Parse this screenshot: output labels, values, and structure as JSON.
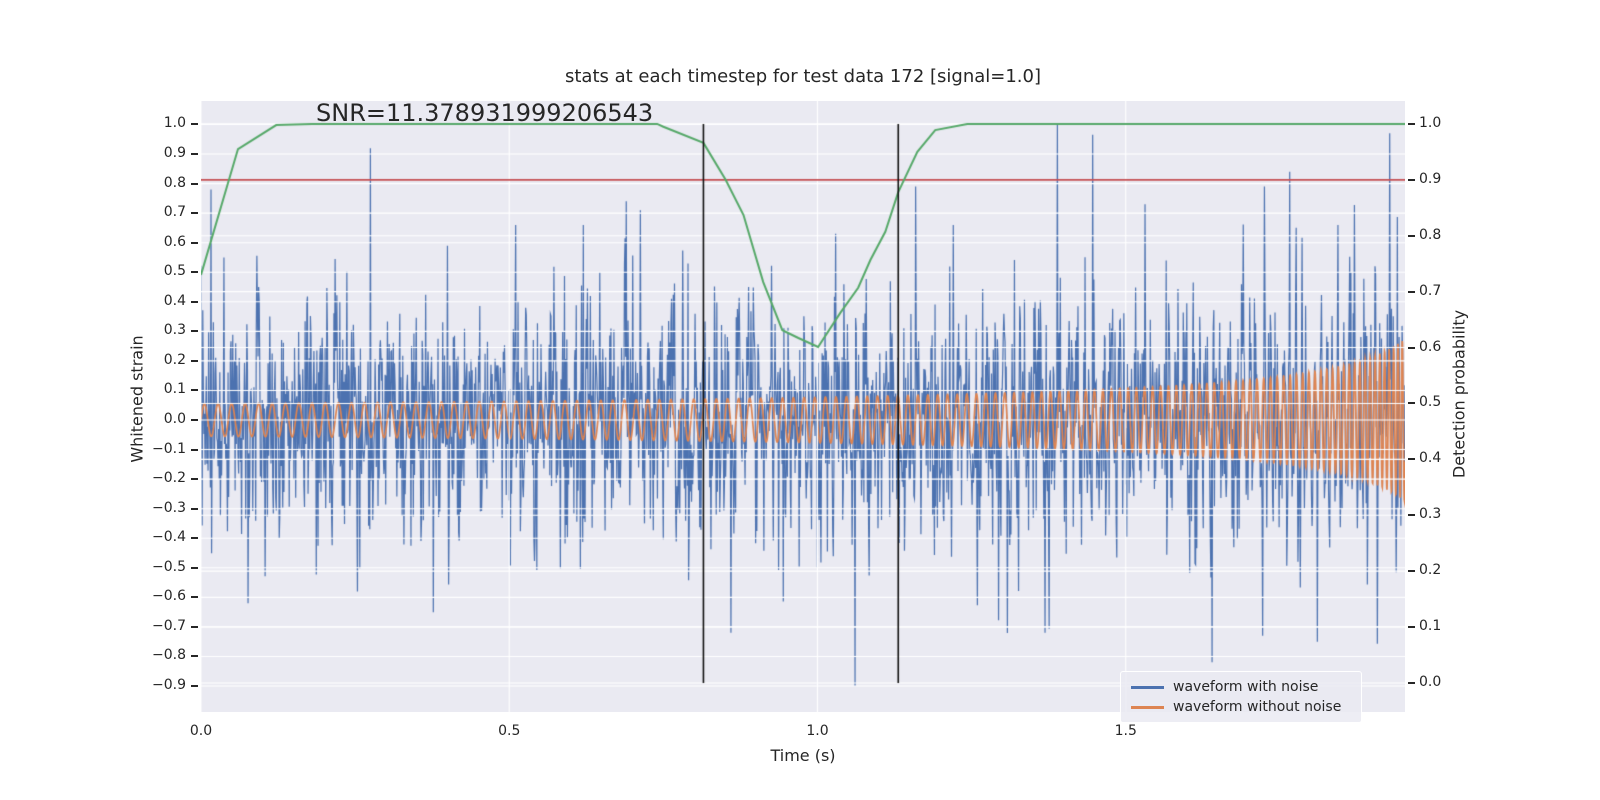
{
  "title": "stats at each timestep for test data 172 [signal=1.0]",
  "annotation": {
    "snr_label": "SNR=11.378931999206543"
  },
  "colors": {
    "figure_background": "#ffffff",
    "plot_background": "#eaeaf2",
    "grid": "#ffffff",
    "text": "#262626",
    "waveform_with_noise": "#4c72b0",
    "waveform_without_noise": "#dd8452",
    "detection_probability": "#55a868",
    "threshold_line": "#c44e52",
    "event_marker": "#111111"
  },
  "legend": {
    "items": [
      {
        "label": "waveform with noise",
        "color": "#4c72b0"
      },
      {
        "label": "waveform without noise",
        "color": "#dd8452"
      }
    ],
    "position": "lower right"
  },
  "chart_data": {
    "type": "line",
    "title": "stats at each timestep for test data 172 [signal=1.0]",
    "xlabel": "Time (s)",
    "ylabel_left": "Whitened strain",
    "ylabel_right": "Detection probability",
    "xlim": [
      0,
      1.953
    ],
    "ylim_left": [
      -0.988,
      1.0795
    ],
    "ylim_right": [
      -0.052,
      1.041
    ],
    "grid": true,
    "x_ticks": {
      "values": [
        0.0,
        0.5,
        1.0,
        1.5
      ],
      "labels": [
        "0.0",
        "0.5",
        "1.0",
        "1.5"
      ]
    },
    "y_ticks_left": {
      "values": [
        1.0,
        0.9,
        0.8,
        0.7,
        0.6,
        0.5,
        0.4,
        0.3,
        0.2,
        0.1,
        0.0,
        -0.1,
        -0.2,
        -0.3,
        -0.4,
        -0.5,
        -0.6,
        -0.7,
        -0.8,
        -0.9
      ],
      "labels": [
        "1.0",
        "0.9",
        "0.8",
        "0.7",
        "0.6",
        "0.5",
        "0.4",
        "0.3",
        "0.2",
        "0.1",
        "0.0",
        "−0.1",
        "−0.2",
        "−0.3",
        "−0.4",
        "−0.5",
        "−0.6",
        "−0.7",
        "−0.8",
        "−0.9"
      ]
    },
    "y_ticks_right": {
      "values": [
        1.0,
        0.9,
        0.8,
        0.7,
        0.6,
        0.5,
        0.4,
        0.3,
        0.2,
        0.1,
        0.0
      ],
      "labels": [
        "1.0",
        "0.9",
        "0.8",
        "0.7",
        "0.6",
        "0.5",
        "0.4",
        "0.3",
        "0.2",
        "0.1",
        "0.0"
      ]
    },
    "series": [
      {
        "name": "waveform with noise",
        "kind": "noisy_signal",
        "axis": "left",
        "color": "#4c72b0",
        "noise_std": 0.21,
        "n_samples": 2048,
        "seed": 172,
        "notable_spikes": [
          [
            0.016,
            0.78
          ],
          [
            0.037,
            0.55
          ],
          [
            0.076,
            -0.62
          ],
          [
            0.275,
            0.92
          ],
          [
            0.4,
            0.59
          ],
          [
            0.51,
            0.66
          ],
          [
            0.62,
            0.66
          ],
          [
            0.69,
            0.74
          ],
          [
            0.713,
            0.71
          ],
          [
            0.79,
            0.53
          ],
          [
            0.86,
            -0.72
          ],
          [
            1.029,
            0.63
          ],
          [
            1.061,
            -0.9
          ],
          [
            1.159,
            0.79
          ],
          [
            1.22,
            0.66
          ],
          [
            1.369,
            -0.72
          ],
          [
            1.389,
            1.0
          ],
          [
            1.446,
            0.965
          ],
          [
            1.531,
            0.73
          ],
          [
            1.64,
            -0.82
          ],
          [
            1.722,
            -0.73
          ],
          [
            1.766,
            0.84
          ],
          [
            1.811,
            -0.75
          ],
          [
            1.844,
            0.66
          ],
          [
            1.928,
            0.97
          ]
        ]
      },
      {
        "name": "waveform without noise",
        "kind": "chirp_signal",
        "axis": "left",
        "color": "#dd8452",
        "f0_hz": 45,
        "t_coalesce": 2.034,
        "freq_exponent": -0.375,
        "amp0": 0.055,
        "amp_exponent": -0.5
      },
      {
        "name": "detection probability",
        "kind": "line",
        "axis": "right",
        "color": "#55a868",
        "points": [
          [
            0.0,
            0.73
          ],
          [
            0.06,
            0.955
          ],
          [
            0.122,
            0.998
          ],
          [
            0.18,
            1.0
          ],
          [
            0.74,
            1.0
          ],
          [
            0.75,
            0.995
          ],
          [
            0.815,
            0.966
          ],
          [
            0.851,
            0.9
          ],
          [
            0.88,
            0.837
          ],
          [
            0.912,
            0.717
          ],
          [
            0.943,
            0.631
          ],
          [
            0.969,
            0.617
          ],
          [
            1.001,
            0.601
          ],
          [
            1.037,
            0.662
          ],
          [
            1.066,
            0.707
          ],
          [
            1.086,
            0.757
          ],
          [
            1.11,
            0.807
          ],
          [
            1.131,
            0.878
          ],
          [
            1.162,
            0.95
          ],
          [
            1.191,
            0.989
          ],
          [
            1.243,
            1.0
          ],
          [
            1.953,
            1.0
          ]
        ]
      },
      {
        "name": "detection threshold",
        "kind": "hline",
        "axis": "right",
        "color": "#c44e52",
        "y": 0.9
      },
      {
        "name": "event window markers",
        "kind": "vlines",
        "color": "#111111",
        "x": [
          0.815,
          1.131
        ],
        "y_span_right_axis": [
          0.0,
          1.0
        ]
      }
    ]
  }
}
